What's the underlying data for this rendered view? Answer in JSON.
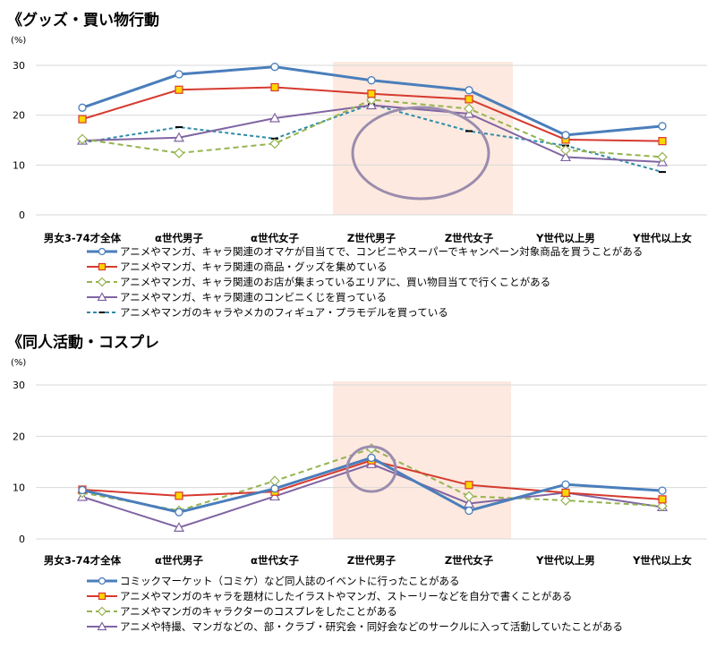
{
  "chart_data": [
    {
      "type": "line",
      "title": "《グッズ・買い物行動",
      "unit": "(%)",
      "categories": [
        "男女3-74才全体",
        "α世代男子",
        "α世代女子",
        "Z世代男子",
        "Z世代女子",
        "Y世代以上男",
        "Y世代以上女"
      ],
      "ylim": [
        0,
        30
      ],
      "yticks": [
        "0",
        "10",
        "20",
        "30"
      ],
      "highlight_categories": [
        "Z世代男子",
        "Z世代女子"
      ],
      "series": [
        {
          "name": "アニメやマンガ、キャラ関連のオマケが目当てで、コンビニやスーパーでキャンペーン対象商品を買うことがある",
          "values": [
            21.5,
            28.2,
            29.7,
            27.0,
            25.0,
            16.0,
            17.8
          ],
          "color": "#4a7ebb",
          "style": "solid",
          "marker": "circle"
        },
        {
          "name": "アニメやマンガ、キャラ関連の商品・グッズを集めている",
          "values": [
            19.2,
            25.1,
            25.6,
            24.3,
            23.2,
            15.1,
            14.8
          ],
          "color": "#d63a2f",
          "style": "solid",
          "marker": "square"
        },
        {
          "name": "アニメやマンガ、キャラ関連のお店が集まっているエリアに、買い物目当てで行くことがある",
          "values": [
            15.2,
            12.4,
            14.3,
            23.1,
            21.3,
            13.0,
            11.6
          ],
          "color": "#94b450",
          "style": "dashed",
          "marker": "diamond"
        },
        {
          "name": "アニメやマンガ、キャラ関連のコンビニくじを買っている",
          "values": [
            14.9,
            15.5,
            19.4,
            22.0,
            20.3,
            11.6,
            10.6
          ],
          "color": "#8064a2",
          "style": "solid",
          "marker": "triangle"
        },
        {
          "name": "アニメやマンガのキャラやメカのフィギュア・プラモデルを買っている",
          "values": [
            14.5,
            17.6,
            15.3,
            22.2,
            16.8,
            13.9,
            8.6
          ],
          "color": "#2e8ba8",
          "style": "dashed",
          "marker": "dash"
        }
      ]
    },
    {
      "type": "line",
      "title": "《同人活動・コスプレ",
      "unit": "(%)",
      "categories": [
        "男女3-74才全体",
        "α世代男子",
        "α世代女子",
        "Z世代男子",
        "Z世代女子",
        "Y世代以上男",
        "Y世代以上女"
      ],
      "ylim": [
        0,
        30
      ],
      "yticks": [
        "0",
        "10",
        "20",
        "30"
      ],
      "highlight_categories": [
        "Z世代男子",
        "Z世代女子"
      ],
      "series": [
        {
          "name": "コミックマーケット（コミケ）など同人誌のイベントに行ったことがある",
          "values": [
            9.5,
            5.2,
            9.8,
            15.8,
            5.5,
            10.6,
            9.4
          ],
          "color": "#4a7ebb",
          "style": "solid",
          "marker": "circle"
        },
        {
          "name": "アニメやマンガのキャラを題材にしたイラストやマンガ、ストーリーなどを自分で書くことがある",
          "values": [
            9.6,
            8.4,
            9.2,
            15.3,
            10.5,
            9.0,
            7.7
          ],
          "color": "#d63a2f",
          "style": "solid",
          "marker": "square"
        },
        {
          "name": "アニメやマンガのキャラクターのコスプレをしたことがある",
          "values": [
            9.0,
            5.5,
            11.3,
            17.6,
            8.3,
            7.5,
            6.4
          ],
          "color": "#94b450",
          "style": "dashed",
          "marker": "diamond"
        },
        {
          "name": "アニメや特撮、マンガなどの、部・クラブ・研究会・同好会などのサークルに入って活動していたことがある",
          "values": [
            8.2,
            2.2,
            8.3,
            14.6,
            6.9,
            9.0,
            6.2
          ],
          "color": "#8064a2",
          "style": "solid",
          "marker": "triangle"
        }
      ]
    }
  ]
}
